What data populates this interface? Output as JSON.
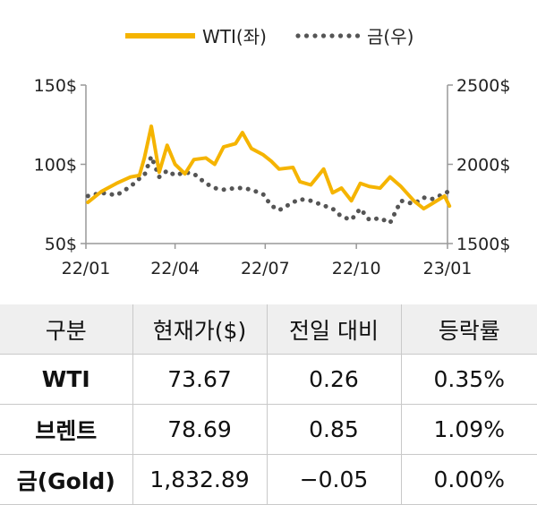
{
  "chart_data": {
    "type": "line",
    "legend": {
      "position": "top",
      "entries": [
        "WTI(좌)",
        "금(우)"
      ]
    },
    "x_ticks": [
      "22/01",
      "22/04",
      "22/07",
      "22/10",
      "23/01"
    ],
    "y_left": {
      "ticks": [
        "150$",
        "100$",
        "50$"
      ],
      "range": [
        50,
        150
      ]
    },
    "y_right": {
      "ticks": [
        "2500$",
        "2000$",
        "1500$"
      ],
      "range": [
        1500,
        2500
      ]
    },
    "colors": {
      "wti": "#f5b400",
      "gold": "#555555"
    },
    "series": [
      {
        "name": "WTI(좌)",
        "axis": "left",
        "style": "solid",
        "x": [
          "2022-01-03",
          "2022-01-17",
          "2022-02-01",
          "2022-02-15",
          "2022-02-24",
          "2022-03-01",
          "2022-03-08",
          "2022-03-16",
          "2022-03-24",
          "2022-04-01",
          "2022-04-11",
          "2022-04-20",
          "2022-05-02",
          "2022-05-11",
          "2022-05-20",
          "2022-06-01",
          "2022-06-08",
          "2022-06-17",
          "2022-06-29",
          "2022-07-07",
          "2022-07-15",
          "2022-07-29",
          "2022-08-05",
          "2022-08-16",
          "2022-08-29",
          "2022-09-07",
          "2022-09-16",
          "2022-09-26",
          "2022-10-05",
          "2022-10-14",
          "2022-10-25",
          "2022-11-04",
          "2022-11-15",
          "2022-11-28",
          "2022-12-08",
          "2022-12-16",
          "2022-12-29",
          "2023-01-03"
        ],
        "y": [
          76,
          83,
          88,
          92,
          93,
          104,
          124,
          95,
          112,
          100,
          94,
          103,
          104,
          100,
          111,
          113,
          120,
          110,
          106,
          102,
          97,
          98,
          89,
          87,
          97,
          82,
          85,
          77,
          88,
          86,
          85,
          92,
          86,
          77,
          72,
          75,
          80,
          73.67
        ]
      },
      {
        "name": "금(우)",
        "axis": "right",
        "style": "dotted",
        "x": [
          "2022-01-03",
          "2022-01-17",
          "2022-02-01",
          "2022-02-15",
          "2022-02-24",
          "2022-03-01",
          "2022-03-08",
          "2022-03-16",
          "2022-03-24",
          "2022-04-01",
          "2022-04-11",
          "2022-04-20",
          "2022-05-02",
          "2022-05-11",
          "2022-05-20",
          "2022-06-01",
          "2022-06-08",
          "2022-06-17",
          "2022-06-29",
          "2022-07-07",
          "2022-07-15",
          "2022-07-29",
          "2022-08-05",
          "2022-08-16",
          "2022-08-29",
          "2022-09-07",
          "2022-09-16",
          "2022-09-26",
          "2022-10-05",
          "2022-10-14",
          "2022-10-25",
          "2022-11-04",
          "2022-11-15",
          "2022-11-28",
          "2022-12-08",
          "2022-12-16",
          "2022-12-29",
          "2023-01-03"
        ],
        "y": [
          1800,
          1820,
          1805,
          1860,
          1910,
          1930,
          2050,
          1920,
          1960,
          1930,
          1950,
          1940,
          1880,
          1850,
          1840,
          1850,
          1850,
          1840,
          1810,
          1740,
          1710,
          1760,
          1780,
          1770,
          1740,
          1720,
          1670,
          1650,
          1720,
          1650,
          1660,
          1630,
          1770,
          1750,
          1790,
          1780,
          1815,
          1832.89
        ]
      }
    ]
  },
  "table": {
    "headers": [
      "구분",
      "현재가($)",
      "전일 대비",
      "등락률"
    ],
    "rows": [
      [
        "WTI",
        "73.67",
        "0.26",
        "0.35%"
      ],
      [
        "브렌트",
        "78.69",
        "0.85",
        "1.09%"
      ],
      [
        "금(Gold)",
        "1,832.89",
        "−0.05",
        "0.00%"
      ]
    ]
  }
}
